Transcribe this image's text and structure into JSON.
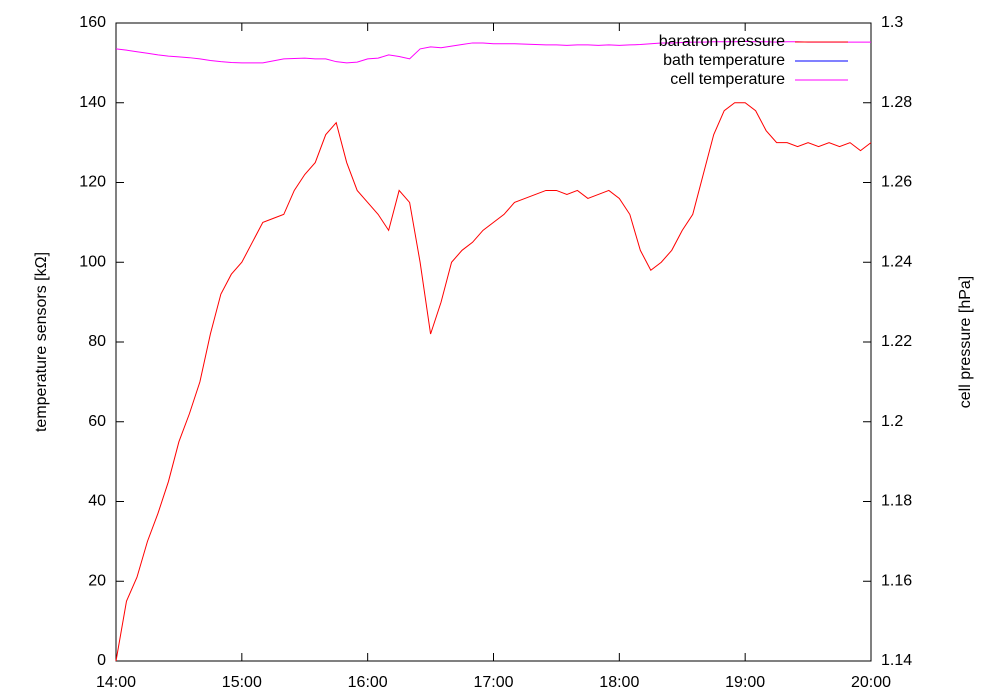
{
  "chart_data": {
    "type": "line",
    "y_label": "temperature sensors [kΩ]",
    "y2_label": "cell pressure [hPa]",
    "xlim": [
      840,
      1200
    ],
    "xticks": [
      {
        "value": 840,
        "label": "14:00"
      },
      {
        "value": 900,
        "label": "15:00"
      },
      {
        "value": 960,
        "label": "16:00"
      },
      {
        "value": 1020,
        "label": "17:00"
      },
      {
        "value": 1080,
        "label": "18:00"
      },
      {
        "value": 1140,
        "label": "19:00"
      },
      {
        "value": 1200,
        "label": "20:00"
      }
    ],
    "ylim": [
      0,
      160
    ],
    "yticks": [
      0,
      20,
      40,
      60,
      80,
      100,
      120,
      140,
      160
    ],
    "y2lim": [
      1.14,
      1.3
    ],
    "y2ticks": [
      1.14,
      1.16,
      1.18,
      1.2,
      1.22,
      1.24,
      1.26,
      1.28,
      1.3
    ],
    "legend": "top-right",
    "grid": false,
    "x": [
      840,
      845,
      850,
      855,
      860,
      865,
      870,
      875,
      880,
      885,
      890,
      895,
      900,
      905,
      910,
      915,
      920,
      925,
      930,
      935,
      940,
      945,
      950,
      955,
      960,
      965,
      970,
      975,
      980,
      985,
      990,
      995,
      1000,
      1005,
      1010,
      1015,
      1020,
      1025,
      1030,
      1035,
      1040,
      1045,
      1050,
      1055,
      1060,
      1065,
      1070,
      1075,
      1080,
      1085,
      1090,
      1095,
      1100,
      1105,
      1110,
      1115,
      1120,
      1125,
      1130,
      1135,
      1140,
      1145,
      1150,
      1155,
      1160,
      1165,
      1170,
      1175,
      1180,
      1185,
      1190,
      1195,
      1200
    ],
    "series": [
      {
        "name": "baratron pressure",
        "color": "#ff0000",
        "axis": "y2",
        "values": [
          1.14,
          1.155,
          1.161,
          1.17,
          1.177,
          1.185,
          1.195,
          1.202,
          1.21,
          1.222,
          1.232,
          1.237,
          1.24,
          1.245,
          1.25,
          1.251,
          1.252,
          1.258,
          1.262,
          1.265,
          1.272,
          1.275,
          1.265,
          1.258,
          1.255,
          1.252,
          1.248,
          1.258,
          1.255,
          1.24,
          1.222,
          1.23,
          1.24,
          1.243,
          1.245,
          1.248,
          1.25,
          1.252,
          1.255,
          1.256,
          1.257,
          1.258,
          1.258,
          1.257,
          1.258,
          1.256,
          1.257,
          1.258,
          1.256,
          1.252,
          1.243,
          1.238,
          1.24,
          1.243,
          1.248,
          1.252,
          1.262,
          1.272,
          1.278,
          1.28,
          1.28,
          1.278,
          1.273,
          1.27,
          1.27,
          1.269,
          1.27,
          1.269,
          1.27,
          1.269,
          1.27,
          1.268,
          1.27
        ]
      },
      {
        "name": "bath temperature",
        "color": "#0000ff",
        "values": [
          null,
          null,
          null,
          null,
          null,
          null,
          null,
          null,
          null,
          null,
          null,
          null,
          null,
          null,
          null,
          null,
          null,
          null,
          null,
          null,
          null,
          null,
          null,
          null,
          null,
          null,
          null,
          null,
          null,
          null,
          null,
          null,
          null,
          null,
          null,
          null,
          null,
          null,
          null,
          null,
          null,
          null,
          null,
          null,
          null,
          null,
          null,
          null,
          null,
          null,
          null,
          null,
          null,
          null,
          null,
          null,
          null,
          null,
          null,
          null,
          null,
          null,
          null,
          null,
          null,
          null,
          null,
          null,
          null,
          null,
          null,
          null,
          null
        ]
      },
      {
        "name": "cell temperature",
        "color": "#ff00ff",
        "values": [
          153.5,
          153.2,
          152.8,
          152.4,
          152.0,
          151.7,
          151.5,
          151.3,
          151.0,
          150.6,
          150.3,
          150.1,
          150.0,
          150.0,
          150.0,
          150.5,
          151.0,
          151.1,
          151.2,
          151.0,
          151.0,
          150.3,
          150.0,
          150.2,
          151.0,
          151.2,
          152.0,
          151.6,
          151.0,
          153.5,
          154.0,
          153.8,
          154.2,
          154.6,
          155.0,
          155.0,
          154.8,
          154.8,
          154.8,
          154.7,
          154.6,
          154.5,
          154.5,
          154.4,
          154.5,
          154.5,
          154.4,
          154.5,
          154.4,
          154.5,
          154.6,
          154.8,
          155.0,
          155.0,
          155.1,
          155.2,
          155.2,
          155.3,
          155.3,
          155.3,
          155.4,
          155.3,
          155.3,
          155.2,
          155.3,
          155.3,
          155.2,
          155.2,
          155.2,
          155.2,
          155.2,
          155.2,
          155.2
        ]
      }
    ]
  }
}
